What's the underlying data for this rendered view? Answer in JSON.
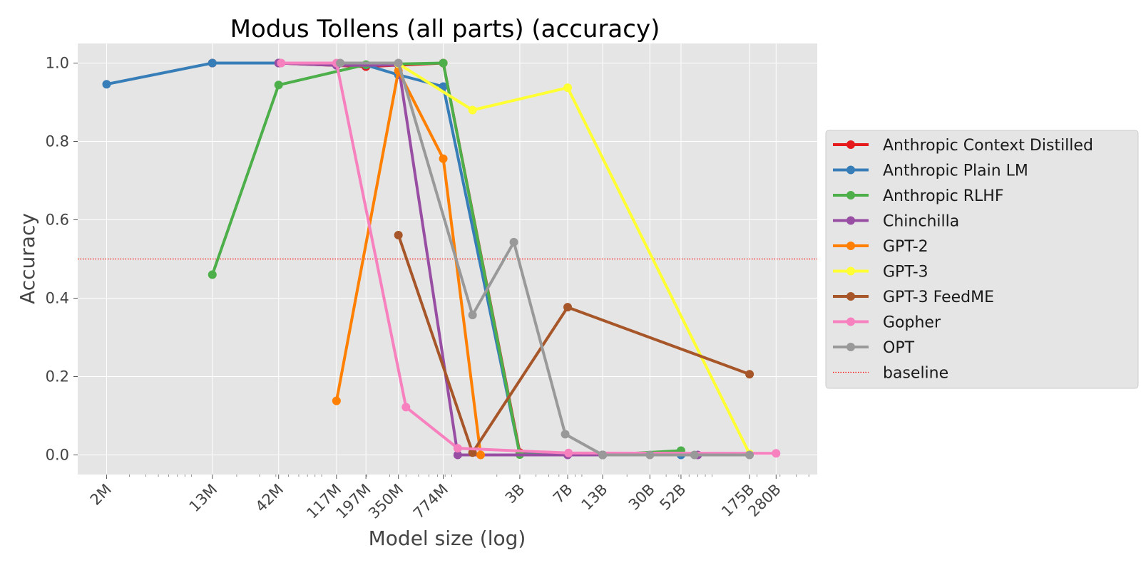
{
  "chart_data": {
    "type": "line",
    "title": "Modus Tollens (all parts) (accuracy)",
    "xlabel": "Model size (log)",
    "ylabel": "Accuracy",
    "xscale": "log",
    "xlim": [
      1200000,
      580000000000
    ],
    "ylim": [
      -0.05,
      1.05
    ],
    "grid": true,
    "legend_position": "right",
    "x_ticks": [
      {
        "label": "2M",
        "value": 2000000
      },
      {
        "label": "13M",
        "value": 13000000
      },
      {
        "label": "42M",
        "value": 42000000
      },
      {
        "label": "117M",
        "value": 117000000
      },
      {
        "label": "197M",
        "value": 197000000
      },
      {
        "label": "350M",
        "value": 350000000
      },
      {
        "label": "774M",
        "value": 774000000
      },
      {
        "label": "3B",
        "value": 3000000000
      },
      {
        "label": "7B",
        "value": 7000000000
      },
      {
        "label": "13B",
        "value": 13000000000
      },
      {
        "label": "30B",
        "value": 30000000000
      },
      {
        "label": "52B",
        "value": 52000000000
      },
      {
        "label": "175B",
        "value": 175000000000
      },
      {
        "label": "280B",
        "value": 280000000000
      }
    ],
    "y_ticks": [
      0.0,
      0.2,
      0.4,
      0.6,
      0.8,
      1.0
    ],
    "y_tick_labels": [
      "0.0",
      "0.2",
      "0.4",
      "0.6",
      "0.8",
      "1.0"
    ],
    "series": [
      {
        "name": "Anthropic Context Distilled",
        "color": "#e41a1c",
        "x": [
          13000000,
          42000000,
          197000000,
          774000000,
          3000000000,
          13000000000,
          52000000000
        ],
        "y": [
          1.0,
          1.0,
          0.991,
          1.0,
          0.006,
          0.0,
          0.002
        ]
      },
      {
        "name": "Anthropic Plain LM",
        "color": "#377eb8",
        "x": [
          2000000,
          13000000,
          42000000,
          197000000,
          350000000,
          774000000,
          3000000000,
          13000000000,
          52000000000
        ],
        "y": [
          0.946,
          1.0,
          1.0,
          0.995,
          0.97,
          0.94,
          0.002,
          0.0,
          0.0
        ]
      },
      {
        "name": "Anthropic RLHF",
        "color": "#4daf4a",
        "x": [
          13000000,
          42000000,
          197000000,
          774000000,
          3000000000,
          13000000000,
          52000000000
        ],
        "y": [
          0.46,
          0.944,
          0.996,
          1.0,
          0.001,
          0.0,
          0.011
        ]
      },
      {
        "name": "Chinchilla",
        "color": "#984ea3",
        "x": [
          42000000,
          117000000,
          350000000,
          1000000000,
          7000000000,
          13000000000,
          70000000000
        ],
        "y": [
          1.0,
          0.994,
          0.995,
          0.0,
          0.0,
          0.0,
          0.0
        ]
      },
      {
        "name": "GPT-2",
        "color": "#ff7f00",
        "x": [
          117000000,
          350000000,
          774000000,
          1500000000
        ],
        "y": [
          0.138,
          0.98,
          0.756,
          0.0
        ]
      },
      {
        "name": "GPT-3",
        "color": "#ffff33",
        "x": [
          350000000,
          1300000000,
          7000000000,
          175000000000
        ],
        "y": [
          0.998,
          0.88,
          0.937,
          0.003
        ]
      },
      {
        "name": "GPT-3 FeedME",
        "color": "#a65628",
        "x": [
          350000000,
          1300000000,
          7000000000,
          175000000000
        ],
        "y": [
          0.561,
          0.006,
          0.377,
          0.206
        ]
      },
      {
        "name": "Gopher",
        "color": "#f781bf",
        "x": [
          44000000,
          117000000,
          400000000,
          1000000000,
          7100000000,
          280000000000
        ],
        "y": [
          1.0,
          1.0,
          0.122,
          0.017,
          0.005,
          0.004
        ]
      },
      {
        "name": "OPT",
        "color": "#999999",
        "x": [
          125000000,
          350000000,
          1300000000,
          2700000000,
          6700000000,
          13000000000,
          30000000000,
          66000000000,
          175000000000
        ],
        "y": [
          1.0,
          1.0,
          0.357,
          0.543,
          0.053,
          0.0,
          0.0,
          0.0,
          0.0
        ]
      }
    ],
    "baseline": {
      "name": "baseline",
      "value": 0.5,
      "color": "#ff0000"
    }
  }
}
